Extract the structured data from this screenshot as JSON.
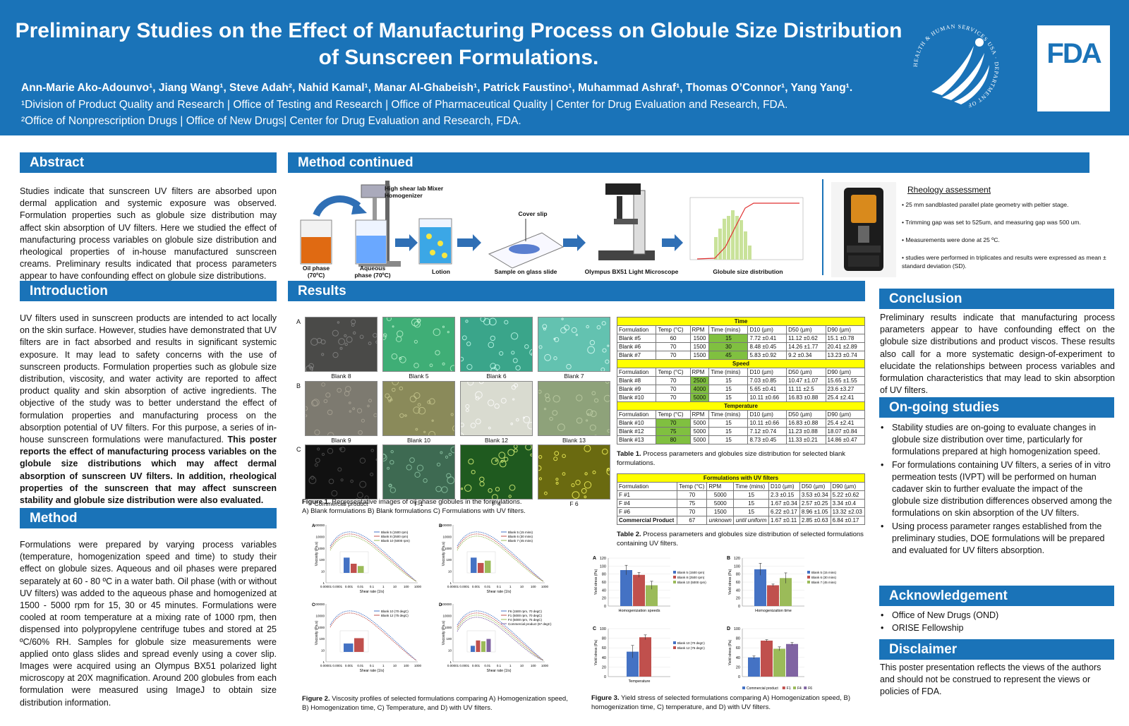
{
  "header": {
    "title_line1": "Preliminary Studies on the Effect of Manufacturing Process on Globule Size Distribution",
    "title_line2": "of Sunscreen Formulations.",
    "authors": "Ann-Marie Ako-Adounvo¹, Jiang Wang¹, Steve Adah², Nahid Kamal¹, Manar Al-Ghabeish¹, Patrick Faustino¹, Muhammad Ashraf¹, Thomas O’Connor¹, Yang Yang¹.",
    "affiliation1": "¹Division of Product Quality and Research | Office of Testing and Research | Office of Pharmaceutical Quality | Center for Drug Evaluation and Research, FDA.",
    "affiliation2": "²Office of Nonprescription Drugs | Office of New Drugs| Center for Drug Evaluation and Research, FDA.",
    "fda_logo_text": "FDA",
    "hhs_seal_text": "HEALTH & HUMAN SERVICES USA · DEPARTMENT OF"
  },
  "abstract": {
    "heading": "Abstract",
    "text": "Studies indicate that sunscreen UV filters are absorbed upon dermal application and systemic exposure was observed. Formulation properties such as globule size distribution may affect skin absorption of UV filters. Here we studied the effect of manufacturing process variables on globule size distribution and rheological properties of in-house manufactured sunscreen creams. Preliminary results indicated that process parameters appear to have confounding effect on globule size distributions."
  },
  "introduction": {
    "heading": "Introduction",
    "text_plain": "UV filters used in sunscreen products are intended to act locally on the skin surface. However, studies have demonstrated that UV filters are in fact absorbed and results in significant systemic exposure. It may lead to safety concerns with the use of sunscreen products. Formulation properties such as globule size distribution, viscosity, and water activity are reported to affect product quality and skin absorption of active ingredients. The objective of the study was to better understand the effect of formulation properties and manufacturing process on the absorption potential of UV filters. For this purpose, a series of in-house sunscreen formulations were manufactured.",
    "text_bold": "This poster reports the effect of manufacturing process variables on the globule size distributions which may affect dermal absorption of sunscreen UV filters.  In addition, rheological properties of the sunscreen that may affect sunscreen stability and globule size distribution were also evaluated."
  },
  "method": {
    "heading": "Method",
    "text": "Formulations were prepared by varying process variables (temperature, homogenization speed and time) to study their effect on globule sizes. Aqueous and oil phases were prepared separately at 60 - 80 ºC in a water bath. Oil phase (with or without UV filters) was added to the aqueous phase and homogenized at 1500 - 5000 rpm for 15, 30 or 45 minutes. Formulations were cooled at room temperature at a mixing rate of 1000 rpm, then dispensed into polypropylene centrifuge tubes and stored at 25 ºC/60% RH. Samples for globule size measurements were applied onto glass slides and spread evenly using a cover slip. Images were acquired using an Olympus BX51 polarized light microscopy at 20X magnification. Around 200 globules from each formulation were measured using ImageJ to obtain size distribution information."
  },
  "method_continued": {
    "heading": "Method continued",
    "labels": {
      "homogenizer": "High shear lab Mixer Homogenizer",
      "oil_phase": "Oil phase (70ºC)",
      "aqueous_phase": "Aqueous phase (70ºC)",
      "lotion": "Lotion",
      "cover_slip": "Cover slip",
      "sample": "Sample on glass slide",
      "microscope": "Olympus BX51 Light Microscope",
      "distribution": "Globule size distribution"
    },
    "rheology": {
      "title": "Rheology assessment",
      "items": [
        "• 25 mm sandblasted parallel plate geometry with peltier stage.",
        "• Trimming gap was set to 525um, and measuring gap was 500 um.",
        "• Measurements were done at 25 ºC.",
        "• studies were performed in triplicates and results were expressed as mean ± standard deviation (SD)."
      ]
    }
  },
  "results": {
    "heading": "Results",
    "row_labels": [
      "A",
      "B",
      "C"
    ],
    "image_captions": [
      [
        "Blank 8",
        "Blank 5",
        "Blank 6",
        "Blank 7"
      ],
      [
        "Blank 9",
        "Blank 10",
        "Blank 12",
        "Blank 13"
      ],
      [
        "Commercial product",
        "F 1",
        "F 4",
        "F 6"
      ]
    ],
    "fig1_bold": "Figure 1.",
    "fig1_text": " Representative images of oil phase globules in the formulations.",
    "fig1_line2": "A) Blank formulations B) Blank formulations C) Formulations with UV filters.",
    "fig2_bold": "Figure 2.",
    "fig2_text": " Viscosity profiles of selected formulations comparing A) Homogenization speed, B) Homogenization time, C) Temperature, and D) with UV filters.",
    "fig3_bold": "Figure 3.",
    "fig3_text": " Yield stress of selected formulations comparing A) Homogenization speed, B) homogenization time, C) temperature, and D) with UV filters.",
    "table1_bold": "Table 1.",
    "table1_text": " Process parameters and globules size distribution for selected blank formulations.",
    "table2_bold": "Table 2.",
    "table2_text": " Process parameters and globules size distribution of selected formulations containing UV filters."
  },
  "table1": {
    "columns": [
      "Formulation",
      "Temp (°C)",
      "RPM",
      "Time (mins)",
      "D10 (µm)",
      "D50 (µm)",
      "D90 (µm)"
    ],
    "groups": [
      {
        "title": "Time",
        "highlight_col": 3,
        "rows": [
          [
            "Blank #5",
            "60",
            "1500",
            "15",
            "7.72 ±0.41",
            "11.12 ±0.62",
            "15.1 ±0.78"
          ],
          [
            "Blank #6",
            "70",
            "1500",
            "30",
            "8.48 ±0.45",
            "14.26 ±1.77",
            "20.41 ±2.89"
          ],
          [
            "Blank #7",
            "70",
            "1500",
            "45",
            "5.83 ±0.92",
            "9.2 ±0.34",
            "13.23 ±0.74"
          ]
        ]
      },
      {
        "title": "Speed",
        "highlight_col": 2,
        "rows": [
          [
            "Blank #8",
            "70",
            "2500",
            "15",
            "7.03 ±0.85",
            "10.47 ±1.07",
            "15.65 ±1.55"
          ],
          [
            "Blank #9",
            "70",
            "4000",
            "15",
            "5.65 ±0.41",
            "11.11 ±2.5",
            "23.6 ±3.27"
          ],
          [
            "Blank #10",
            "70",
            "5000",
            "15",
            "10.11 ±0.66",
            "16.83 ±0.88",
            "25.4 ±2.41"
          ]
        ]
      },
      {
        "title": "Temperature",
        "highlight_col": 1,
        "rows": [
          [
            "Blank #10",
            "70",
            "5000",
            "15",
            "10.11 ±0.66",
            "16.83 ±0.88",
            "25.4 ±2.41"
          ],
          [
            "Blank #12",
            "75",
            "5000",
            "15",
            "7.12 ±0.74",
            "11.23 ±0.88",
            "18.07 ±0.84"
          ],
          [
            "Blank #13",
            "80",
            "5000",
            "15",
            "8.73 ±0.45",
            "11.33 ±0.21",
            "14.86 ±0.47"
          ]
        ]
      }
    ]
  },
  "table2": {
    "title": "Formulations with UV filters",
    "columns": [
      "Formulation",
      "Temp (°C)",
      "RPM",
      "Time (mins)",
      "D10 (µm)",
      "D50 (µm)",
      "D90 (µm)"
    ],
    "rows": [
      [
        "F #1",
        "70",
        "5000",
        "15",
        "2.3 ±0.15",
        "3.53 ±0.34",
        "5.22 ±0.62"
      ],
      [
        "F #4",
        "75",
        "5000",
        "15",
        "1.67 ±0.34",
        "2.57 ±0.25",
        "3.34 ±0.4"
      ],
      [
        "F #6",
        "70",
        "1500",
        "15",
        "6.22 ±0.17",
        "8.96 ±1.05",
        "13.32 ±2.03"
      ],
      [
        "Commercial Product",
        "67",
        "unknown",
        "until uniform",
        "1.67 ±0.11",
        "2.85 ±0.63",
        "6.84 ±0.17"
      ]
    ]
  },
  "chart_data": [
    {
      "type": "bar",
      "panel": "A",
      "ylabel": "Yield stress (Pa)",
      "ylim": [
        0,
        120
      ],
      "yticks": [
        0,
        20,
        40,
        60,
        80,
        100,
        120
      ],
      "categories": [
        "Homogenization speeds"
      ],
      "series": [
        {
          "name": "Blank 5 (1500 rpm)",
          "values": [
            90
          ],
          "error": [
            12
          ],
          "color": "#4472c4"
        },
        {
          "name": "Blank 8 (2500 rpm)",
          "values": [
            78
          ],
          "error": [
            6
          ],
          "color": "#c0504d"
        },
        {
          "name": "Blank 10 (5000 rpm)",
          "values": [
            52
          ],
          "error": [
            10
          ],
          "color": "#9bbb59"
        }
      ]
    },
    {
      "type": "bar",
      "panel": "B",
      "ylabel": "Yield stress (Pa)",
      "ylim": [
        0,
        120
      ],
      "yticks": [
        0,
        20,
        40,
        60,
        80,
        100,
        120
      ],
      "categories": [
        "Homogenization time"
      ],
      "series": [
        {
          "name": "Blank 5 (15 mins)",
          "values": [
            92
          ],
          "error": [
            15
          ],
          "color": "#4472c4"
        },
        {
          "name": "Blank 6 (30 mins)",
          "values": [
            52
          ],
          "error": [
            3
          ],
          "color": "#c0504d"
        },
        {
          "name": "Blank 7 (45 mins)",
          "values": [
            70
          ],
          "error": [
            13
          ],
          "color": "#9bbb59"
        }
      ]
    },
    {
      "type": "bar",
      "panel": "C",
      "ylabel": "Yield stress (Pa)",
      "ylim": [
        0,
        100
      ],
      "yticks": [
        0,
        20,
        40,
        60,
        80,
        100
      ],
      "categories": [
        "Temperature"
      ],
      "series": [
        {
          "name": "Blank 10 (70 degC)",
          "values": [
            52
          ],
          "error": [
            13
          ],
          "color": "#4472c4"
        },
        {
          "name": "Blank 12 (75 degC)",
          "values": [
            82
          ],
          "error": [
            5
          ],
          "color": "#c0504d"
        }
      ]
    },
    {
      "type": "bar",
      "panel": "D",
      "ylabel": "Yield stress (Pa)",
      "ylim": [
        0,
        100
      ],
      "yticks": [
        0,
        20,
        40,
        60,
        80,
        100
      ],
      "categories": [
        ""
      ],
      "series": [
        {
          "name": "Commercial product",
          "values": [
            40
          ],
          "error": [
            3
          ],
          "color": "#4472c4"
        },
        {
          "name": "F1",
          "values": [
            75
          ],
          "error": [
            2
          ],
          "color": "#c0504d"
        },
        {
          "name": "F4",
          "values": [
            58
          ],
          "error": [
            4
          ],
          "color": "#9bbb59"
        },
        {
          "name": "F6",
          "values": [
            68
          ],
          "error": [
            3
          ],
          "color": "#8064a2"
        }
      ]
    }
  ],
  "viscosity_data": {
    "ylabel": "Viscosity (Pa.s)",
    "xlabel": "Shear rate (1/s)",
    "yticks": [
      "1",
      "10",
      "100",
      "1000",
      "10000",
      "100000"
    ],
    "xticks": [
      "0.00001",
      "0.0001",
      "0.001",
      "0.01",
      "0.1",
      "1",
      "10",
      "100",
      "1000"
    ],
    "panels": [
      {
        "panel": "A",
        "legend": [
          "Blank 5 (1500 rpm)",
          "Blank 8 (2500 rpm)",
          "Blank 10 (5000 rpm)"
        ],
        "inset_values": [
          100,
          60,
          45
        ]
      },
      {
        "panel": "B",
        "legend": [
          "Blank 5 (15 mins)",
          "Blank 6 (30 mins)",
          "Blank 7 (45 mins)"
        ],
        "inset_values": [
          100,
          65,
          80
        ]
      },
      {
        "panel": "C",
        "legend": [
          "Blank 10 (70 degC)",
          "Blank 12 (75 degC)"
        ],
        "inset_values": [
          55,
          90
        ]
      },
      {
        "panel": "D",
        "legend": [
          "F6 (1500 rpm, 70 degC)",
          "F1 (5000 rpm, 70 degC)",
          "F4 (5000 rpm, 75 degC)",
          "Commercial product (67 degC)"
        ],
        "inset_values": [
          40,
          75,
          70,
          85
        ]
      }
    ],
    "colors": [
      "#4472c4",
      "#c0504d",
      "#9bbb59",
      "#8064a2"
    ]
  },
  "conclusion": {
    "heading": "Conclusion",
    "text": "Preliminary results indicate that manufacturing process parameters appear to have confounding effect on the globule size distributions and product viscos. These results also call for a more systematic design-of-experiment to elucidate the relationships between process variables and formulation characteristics that may lead to skin absorption of UV filters."
  },
  "ongoing": {
    "heading": "On-going studies",
    "items": [
      "Stability studies are on-going to evaluate changes in globule size distribution over time, particularly for formulations prepared at high homogenization speed.",
      "For formulations containing UV filters, a series of in vitro permeation tests (IVPT) will be performed on human cadaver skin to further evaluate the impact of the globule size distribution differences observed among the formulations on skin absorption of the UV filters.",
      "Using process parameter ranges established from the preliminary studies, DOE formulations will be prepared and evaluated for UV filters absorption."
    ]
  },
  "acknowledgement": {
    "heading": "Acknowledgement",
    "items": [
      "Office of New Drugs (OND)",
      "ORISE Fellowship"
    ]
  },
  "disclaimer": {
    "heading": "Disclaimer",
    "text": "This poster presentation reflects the views of the authors and should not be construed to represent the views or policies of FDA."
  },
  "colors": {
    "brand_blue": "#1a73b8",
    "table_header_yellow": "#ffff00",
    "table_highlight_green": "#80c040"
  }
}
